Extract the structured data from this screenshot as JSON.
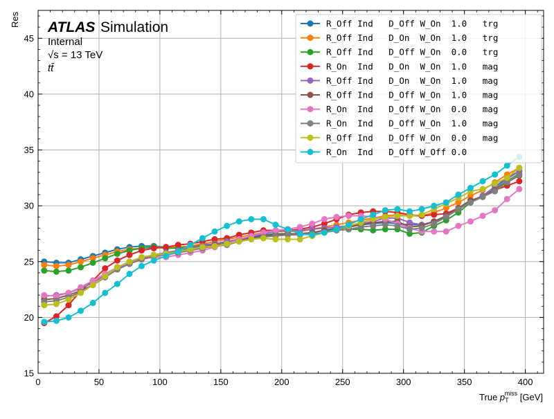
{
  "chart_data": {
    "type": "line",
    "title": "",
    "xlabel": "True p_T^miss [GeV]",
    "xlabel_main": "True ",
    "xlabel_p": "p",
    "xlabel_sub": "T",
    "xlabel_sup": "miss",
    "xlabel_unit": " [GeV]",
    "ylabel": "Res",
    "xlim": [
      0,
      415
    ],
    "ylim": [
      15,
      47.5
    ],
    "xticks": [
      0,
      50,
      100,
      150,
      200,
      250,
      300,
      350,
      400
    ],
    "yticks": [
      15,
      20,
      25,
      30,
      35,
      40,
      45
    ],
    "grid": true,
    "legend_position": "top-right",
    "annotation": {
      "atlas": "ATLAS",
      "simulation": "Simulation",
      "internal": "Internal",
      "energy": "√s = 13 TeV",
      "process": "tt̄"
    },
    "x": [
      5,
      15,
      25,
      35,
      45,
      55,
      65,
      75,
      85,
      95,
      105,
      115,
      125,
      135,
      145,
      155,
      165,
      175,
      185,
      195,
      205,
      215,
      225,
      235,
      245,
      255,
      265,
      275,
      285,
      295,
      305,
      315,
      325,
      335,
      345,
      355,
      365,
      375,
      385,
      395
    ],
    "series": [
      {
        "name": "R_Off Ind   D_Off W_On  1.0   trg",
        "color": "#1f77b4",
        "values": [
          25.0,
          24.9,
          24.9,
          25.2,
          25.5,
          25.8,
          26.1,
          26.3,
          26.4,
          26.4,
          26.3,
          26.2,
          26.3,
          26.5,
          26.6,
          26.8,
          27.0,
          27.2,
          27.4,
          27.5,
          27.5,
          27.5,
          27.6,
          27.8,
          28.0,
          28.1,
          28.3,
          28.4,
          28.5,
          28.4,
          28.3,
          28.3,
          28.6,
          29.0,
          29.7,
          30.4,
          30.9,
          31.7,
          32.5,
          33.1
        ]
      },
      {
        "name": "R_Off Ind   D_On  W_On  1.0   trg",
        "color": "#ff7f0e",
        "values": [
          24.7,
          24.6,
          24.7,
          25.0,
          25.3,
          25.6,
          25.9,
          26.1,
          26.2,
          26.3,
          26.3,
          26.3,
          26.4,
          26.6,
          26.8,
          27.0,
          27.2,
          27.4,
          27.6,
          27.7,
          27.7,
          27.7,
          27.9,
          28.1,
          28.3,
          28.5,
          28.7,
          28.9,
          29.1,
          29.2,
          29.1,
          29.1,
          29.4,
          29.8,
          30.3,
          30.9,
          31.4,
          32.1,
          32.8,
          33.4
        ]
      },
      {
        "name": "R_Off Ind   D_Off W_On  0.0   trg",
        "color": "#2ca02c",
        "values": [
          24.2,
          24.1,
          24.2,
          24.5,
          24.9,
          25.3,
          25.7,
          26.0,
          26.2,
          26.3,
          26.2,
          26.2,
          26.3,
          26.4,
          26.5,
          26.7,
          26.9,
          27.1,
          27.3,
          27.5,
          27.5,
          27.5,
          27.6,
          27.8,
          27.8,
          27.9,
          27.9,
          27.8,
          27.9,
          27.9,
          27.5,
          27.6,
          28.2,
          28.7,
          29.4,
          30.3,
          30.8,
          31.5,
          32.2,
          32.9
        ]
      },
      {
        "name": "R_On  Ind   D_On  W_On  1.0   mag",
        "color": "#d62728",
        "values": [
          19.5,
          20.1,
          21.1,
          22.4,
          23.3,
          24.4,
          25.1,
          25.6,
          26.0,
          26.2,
          26.3,
          26.5,
          26.6,
          26.8,
          27.0,
          27.1,
          27.4,
          27.6,
          27.8,
          27.8,
          27.8,
          27.9,
          28.1,
          28.4,
          28.8,
          29.2,
          29.4,
          29.5,
          29.5,
          29.4,
          29.2,
          29.1,
          29.2,
          29.3,
          29.8,
          30.4,
          30.9,
          31.4,
          31.8,
          32.2
        ]
      },
      {
        "name": "R_Off Ind   D_On  W_On  1.0   mag",
        "color": "#9467bd",
        "values": [
          21.9,
          22.0,
          22.2,
          22.6,
          23.1,
          23.8,
          24.4,
          24.9,
          25.3,
          25.6,
          25.8,
          26.0,
          26.2,
          26.4,
          26.6,
          26.8,
          27.0,
          27.3,
          27.5,
          27.7,
          27.8,
          27.8,
          27.9,
          28.0,
          28.1,
          28.2,
          28.4,
          28.6,
          28.9,
          28.9,
          28.5,
          28.3,
          28.6,
          29.1,
          29.8,
          30.4,
          30.9,
          31.6,
          32.4,
          33.1
        ]
      },
      {
        "name": "R_Off Ind   D_Off W_On  1.0   mag",
        "color": "#8c564b",
        "values": [
          21.6,
          21.7,
          22.0,
          22.4,
          22.9,
          23.6,
          24.3,
          24.8,
          25.2,
          25.5,
          25.7,
          25.9,
          26.1,
          26.3,
          26.5,
          26.6,
          26.9,
          27.1,
          27.3,
          27.4,
          27.5,
          27.5,
          27.6,
          27.8,
          27.9,
          28.1,
          28.3,
          28.5,
          28.6,
          28.6,
          28.1,
          28.2,
          28.6,
          29.1,
          29.8,
          30.5,
          30.8,
          31.4,
          32.1,
          32.7
        ]
      },
      {
        "name": "R_On  Ind   D_Off W_On  0.0   mag",
        "color": "#e377c2",
        "values": [
          22.0,
          21.9,
          22.2,
          22.7,
          23.3,
          23.9,
          24.5,
          24.9,
          25.2,
          25.4,
          25.4,
          25.6,
          25.8,
          26.0,
          26.3,
          26.6,
          27.0,
          27.3,
          27.6,
          27.8,
          27.9,
          28.1,
          28.4,
          28.8,
          29.0,
          29.1,
          29.1,
          29.0,
          28.8,
          28.4,
          28.0,
          27.7,
          27.7,
          27.7,
          28.2,
          28.6,
          29.1,
          29.6,
          30.6,
          31.5
        ]
      },
      {
        "name": "R_On  Ind   D_Off W_On  1.0   mag",
        "color": "#7f7f7f",
        "values": [
          21.4,
          21.5,
          21.8,
          22.3,
          22.9,
          23.6,
          24.3,
          24.8,
          25.2,
          25.5,
          25.6,
          25.8,
          26.0,
          26.2,
          26.4,
          26.5,
          26.8,
          27.0,
          27.2,
          27.3,
          27.4,
          27.4,
          27.5,
          27.6,
          27.8,
          27.9,
          28.1,
          28.2,
          28.3,
          28.2,
          27.9,
          28.0,
          28.4,
          29.0,
          29.7,
          30.3,
          30.8,
          31.3,
          32.1,
          32.8
        ]
      },
      {
        "name": "R_Off Ind   D_Off W_On  0.0   mag",
        "color": "#bcbd22",
        "values": [
          21.1,
          21.2,
          21.6,
          22.2,
          22.9,
          23.7,
          24.5,
          25.0,
          25.4,
          25.6,
          25.7,
          25.9,
          26.1,
          26.3,
          26.4,
          26.6,
          26.8,
          27.0,
          27.1,
          27.0,
          27.0,
          27.0,
          27.3,
          27.6,
          27.9,
          28.2,
          28.5,
          28.8,
          29.0,
          29.1,
          29.1,
          29.2,
          29.7,
          30.2,
          30.7,
          31.3,
          31.5,
          32.0,
          32.5,
          33.4
        ]
      },
      {
        "name": "R_On  Ind   D_Off W_Off 0.0",
        "color": "#17becf",
        "values": [
          19.6,
          19.7,
          20.0,
          20.6,
          21.3,
          22.2,
          23.0,
          23.9,
          24.6,
          25.1,
          25.5,
          25.9,
          26.5,
          27.1,
          27.7,
          28.2,
          28.6,
          28.8,
          28.8,
          28.3,
          27.9,
          27.5,
          27.4,
          27.6,
          27.9,
          28.3,
          28.8,
          29.2,
          29.6,
          29.7,
          29.5,
          29.7,
          30.0,
          30.3,
          31.0,
          31.6,
          32.2,
          32.8,
          33.6,
          34.4
        ]
      }
    ]
  }
}
